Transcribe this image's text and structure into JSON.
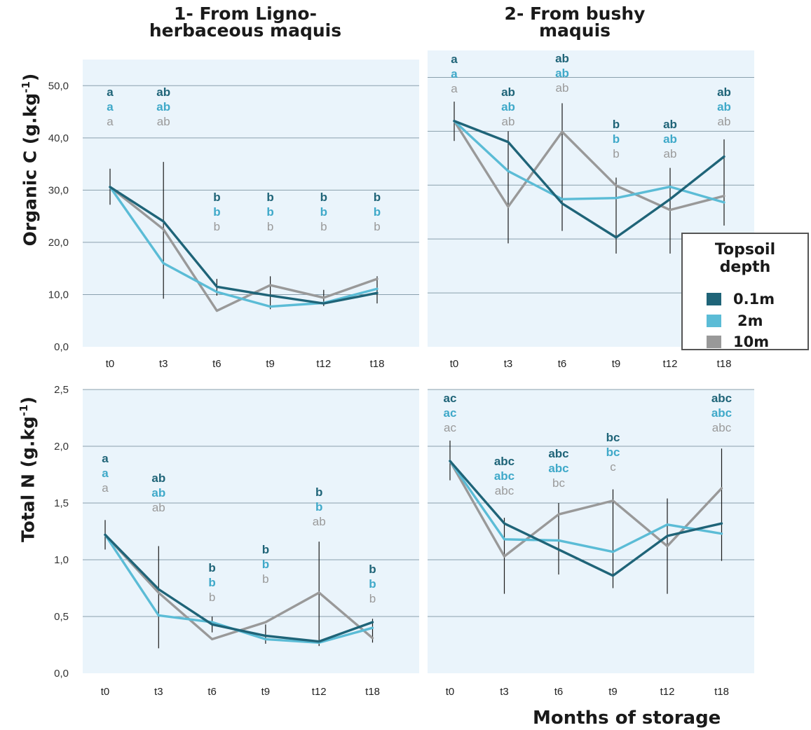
{
  "figure": {
    "columns": [
      "1- From Ligno-herbaceous maquis",
      "2- From bushy maquis"
    ],
    "columns_lines": [
      [
        "1- From Ligno-",
        "herbaceous maquis"
      ],
      [
        "2- From bushy",
        "maquis"
      ]
    ],
    "row_titles": {
      "organic_c": {
        "main": "Organic C (g.kg",
        "sup": "-1",
        "end": ")"
      },
      "total_n": {
        "main": "Total N (g.kg",
        "sup": "-1",
        "end": ")"
      }
    },
    "x_axis_title": "Months of storage"
  },
  "legend": {
    "title_lines": [
      "Topsoil",
      "depth"
    ],
    "items": [
      {
        "label": "0.1m",
        "color": "#1f6478"
      },
      {
        "label": "2m",
        "color": "#5bbcd6"
      },
      {
        "label": "10m",
        "color": "#999999"
      }
    ]
  },
  "colors": {
    "plot_background": "#eaf4fb",
    "gridline": "#8aa0ad",
    "error_bar": "#1a1a1a",
    "series_0.1m": "#1f6478",
    "series_2m": "#5bbcd6",
    "series_10m": "#999999"
  },
  "chart_data": [
    {
      "type": "line",
      "panel": "1- From Ligno-herbaceous maquis",
      "ylabel": "Organic C (g.kg-1)",
      "xlabel": "Months of storage",
      "categories": [
        "t0",
        "t3",
        "t6",
        "t9",
        "t12",
        "t18"
      ],
      "ylim": [
        0,
        55
      ],
      "yticks": [
        "0,0",
        "10,0",
        "20,0",
        "30,0",
        "40,0",
        "50,0"
      ],
      "ytick_values": [
        0,
        10,
        20,
        30,
        40,
        50
      ],
      "grid": true,
      "series": [
        {
          "name": "0.1m",
          "values": [
            30.6,
            24.0,
            11.5,
            9.8,
            8.3,
            10.3
          ]
        },
        {
          "name": "2m",
          "values": [
            30.6,
            16.0,
            10.5,
            7.7,
            8.4,
            11.1
          ]
        },
        {
          "name": "10m",
          "values": [
            30.6,
            22.5,
            6.9,
            11.8,
            9.4,
            13.0
          ]
        }
      ],
      "error_bars": [
        {
          "x": "t0",
          "low": 27.2,
          "high": 34.1
        },
        {
          "x": "t3",
          "low": 9.2,
          "high": 35.4
        },
        {
          "x": "t6",
          "low": 9.8,
          "high": 13.0
        },
        {
          "x": "t9",
          "low": 7.2,
          "high": 13.5
        },
        {
          "x": "t12",
          "low": 7.8,
          "high": 10.9
        },
        {
          "x": "t18",
          "low": 8.3,
          "high": 13.5
        }
      ],
      "significance_letters": [
        [
          "a",
          "a",
          "a"
        ],
        [
          "ab",
          "ab",
          "ab"
        ],
        [
          "b",
          "b",
          "b"
        ],
        [
          "b",
          "b",
          "b"
        ],
        [
          "b",
          "b",
          "b"
        ],
        [
          "b",
          "b",
          "b"
        ]
      ]
    },
    {
      "type": "line",
      "panel": "2- From bushy maquis",
      "ylabel": "Organic C (g.kg-1)",
      "xlabel": "Months of storage",
      "categories": [
        "t0",
        "t3",
        "t6",
        "t9",
        "t12",
        "t18"
      ],
      "ylim": [
        0,
        55
      ],
      "ytick_values": [
        0,
        10,
        20,
        30,
        40,
        50
      ],
      "grid": true,
      "series": [
        {
          "name": "0.1m",
          "values": [
            41.9,
            38.0,
            26.6,
            20.3,
            27.4,
            35.3
          ]
        },
        {
          "name": "2m",
          "values": [
            41.9,
            32.6,
            27.4,
            27.6,
            29.7,
            26.8
          ]
        },
        {
          "name": "10m",
          "values": [
            41.9,
            26.0,
            39.9,
            29.9,
            25.4,
            28.0
          ]
        }
      ],
      "error_bars": [
        {
          "x": "t0",
          "low": 38.2,
          "high": 45.5
        },
        {
          "x": "t3",
          "low": 19.2,
          "high": 40.0
        },
        {
          "x": "t6",
          "low": 21.5,
          "high": 45.2
        },
        {
          "x": "t9",
          "low": 17.3,
          "high": 31.4
        },
        {
          "x": "t12",
          "low": 17.3,
          "high": 33.2
        },
        {
          "x": "t18",
          "low": 22.5,
          "high": 38.5
        }
      ],
      "significance_letters": [
        [
          "a",
          "a",
          "a"
        ],
        [
          "ab",
          "ab",
          "ab"
        ],
        [
          "ab",
          "ab",
          "ab"
        ],
        [
          "b",
          "b",
          "b"
        ],
        [
          "ab",
          "ab",
          "ab"
        ],
        [
          "ab",
          "ab",
          "ab"
        ]
      ]
    },
    {
      "type": "line",
      "panel": "1- From Ligno-herbaceous maquis",
      "ylabel": "Total N (g.kg-1)",
      "xlabel": "Months of storage",
      "categories": [
        "t0",
        "t3",
        "t6",
        "t9",
        "t12",
        "t18"
      ],
      "ylim": [
        0,
        2.5
      ],
      "yticks": [
        "0,0",
        "0,5",
        "1,0",
        "1,5",
        "2,0",
        "2,5"
      ],
      "ytick_values": [
        0,
        0.5,
        1.0,
        1.5,
        2.0,
        2.5
      ],
      "grid": true,
      "series": [
        {
          "name": "0.1m",
          "values": [
            1.22,
            0.74,
            0.43,
            0.33,
            0.28,
            0.45
          ]
        },
        {
          "name": "2m",
          "values": [
            1.22,
            0.51,
            0.45,
            0.3,
            0.27,
            0.4
          ]
        },
        {
          "name": "10m",
          "values": [
            1.22,
            0.71,
            0.3,
            0.45,
            0.71,
            0.31
          ]
        }
      ],
      "error_bars": [
        {
          "x": "t0",
          "low": 1.09,
          "high": 1.35
        },
        {
          "x": "t3",
          "low": 0.22,
          "high": 1.12
        },
        {
          "x": "t6",
          "low": 0.36,
          "high": 0.5
        },
        {
          "x": "t9",
          "low": 0.26,
          "high": 0.43
        },
        {
          "x": "t12",
          "low": 0.24,
          "high": 1.16
        },
        {
          "x": "t18",
          "low": 0.27,
          "high": 0.48
        }
      ],
      "significance_letters": [
        [
          "a",
          "a",
          "a"
        ],
        [
          "ab",
          "ab",
          "ab"
        ],
        [
          "b",
          "b",
          "b"
        ],
        [
          "b",
          "b",
          "b"
        ],
        [
          "b",
          "b",
          "ab"
        ],
        [
          "b",
          "b",
          "b"
        ]
      ]
    },
    {
      "type": "line",
      "panel": "2- From bushy maquis",
      "ylabel": "Total N (g.kg-1)",
      "xlabel": "Months of storage",
      "categories": [
        "t0",
        "t3",
        "t6",
        "t9",
        "t12",
        "t18"
      ],
      "ylim": [
        0,
        2.5
      ],
      "ytick_values": [
        0,
        0.5,
        1.0,
        1.5,
        2.0,
        2.5
      ],
      "grid": true,
      "series": [
        {
          "name": "0.1m",
          "values": [
            1.87,
            1.32,
            1.09,
            0.86,
            1.21,
            1.32
          ]
        },
        {
          "name": "2m",
          "values": [
            1.87,
            1.18,
            1.17,
            1.07,
            1.31,
            1.23
          ]
        },
        {
          "name": "10m",
          "values": [
            1.87,
            1.03,
            1.4,
            1.52,
            1.12,
            1.63
          ]
        }
      ],
      "error_bars": [
        {
          "x": "t0",
          "low": 1.7,
          "high": 2.05
        },
        {
          "x": "t3",
          "low": 0.7,
          "high": 1.37
        },
        {
          "x": "t6",
          "low": 0.87,
          "high": 1.5
        },
        {
          "x": "t9",
          "low": 0.75,
          "high": 1.62
        },
        {
          "x": "t12",
          "low": 0.7,
          "high": 1.54
        },
        {
          "x": "t18",
          "low": 0.99,
          "high": 1.98
        }
      ],
      "significance_letters": [
        [
          "ac",
          "ac",
          "ac"
        ],
        [
          "abc",
          "abc",
          "abc"
        ],
        [
          "abc",
          "abc",
          "bc"
        ],
        [
          "bc",
          "bc",
          "c"
        ],
        [],
        [
          "abc",
          "abc",
          "abc"
        ]
      ]
    }
  ]
}
